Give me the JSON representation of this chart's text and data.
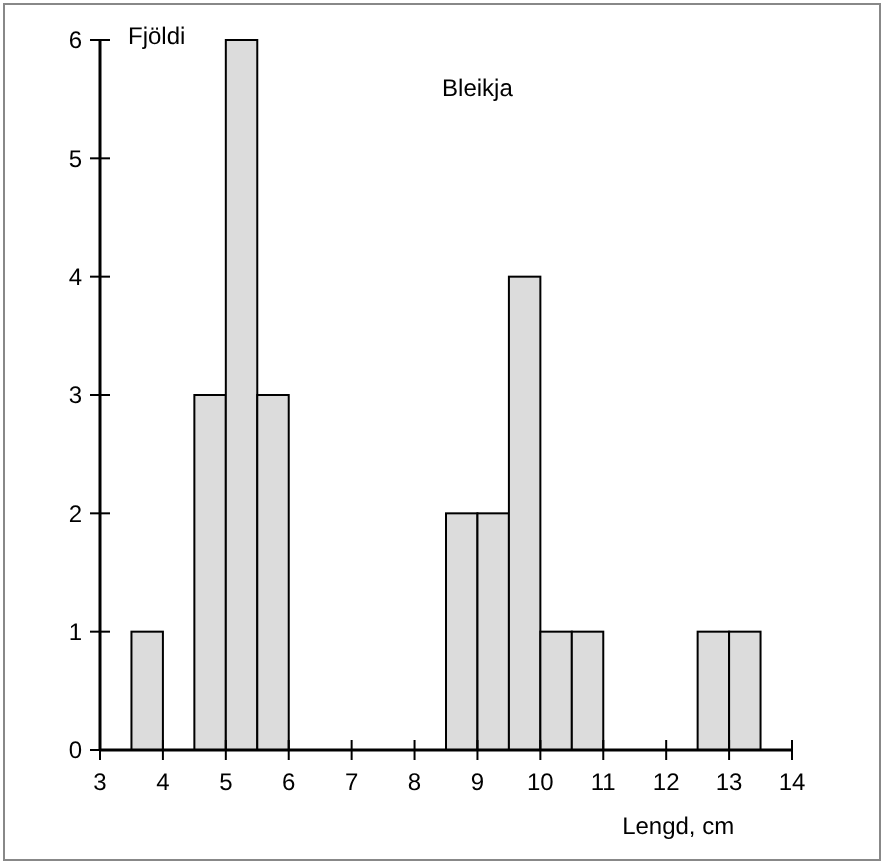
{
  "chart_data": {
    "type": "histogram",
    "title": "Bleikja",
    "xlabel": "Lengd, cm",
    "ylabel": "Fjöldi",
    "color": "#dcdcdc",
    "bins": [
      3,
      3.5,
      4,
      4.5,
      5,
      5.5,
      6,
      6.5,
      7,
      7.5,
      8,
      8.5,
      9,
      9.5,
      10,
      10.5,
      11,
      11.5,
      12,
      12.5,
      13,
      13.5,
      14
    ],
    "values": [
      0,
      1,
      0,
      3,
      6,
      3,
      0,
      0,
      0,
      0,
      0,
      2,
      2,
      4,
      1,
      1,
      0,
      0,
      0,
      1,
      1,
      0
    ],
    "xlim": [
      3,
      14
    ],
    "xticks": [
      3,
      4,
      5,
      6,
      7,
      8,
      9,
      10,
      11,
      12,
      13,
      14
    ],
    "ylim": [
      0,
      6
    ],
    "yticks": [
      0,
      1,
      2,
      3,
      4,
      5,
      6
    ],
    "grid": false
  }
}
